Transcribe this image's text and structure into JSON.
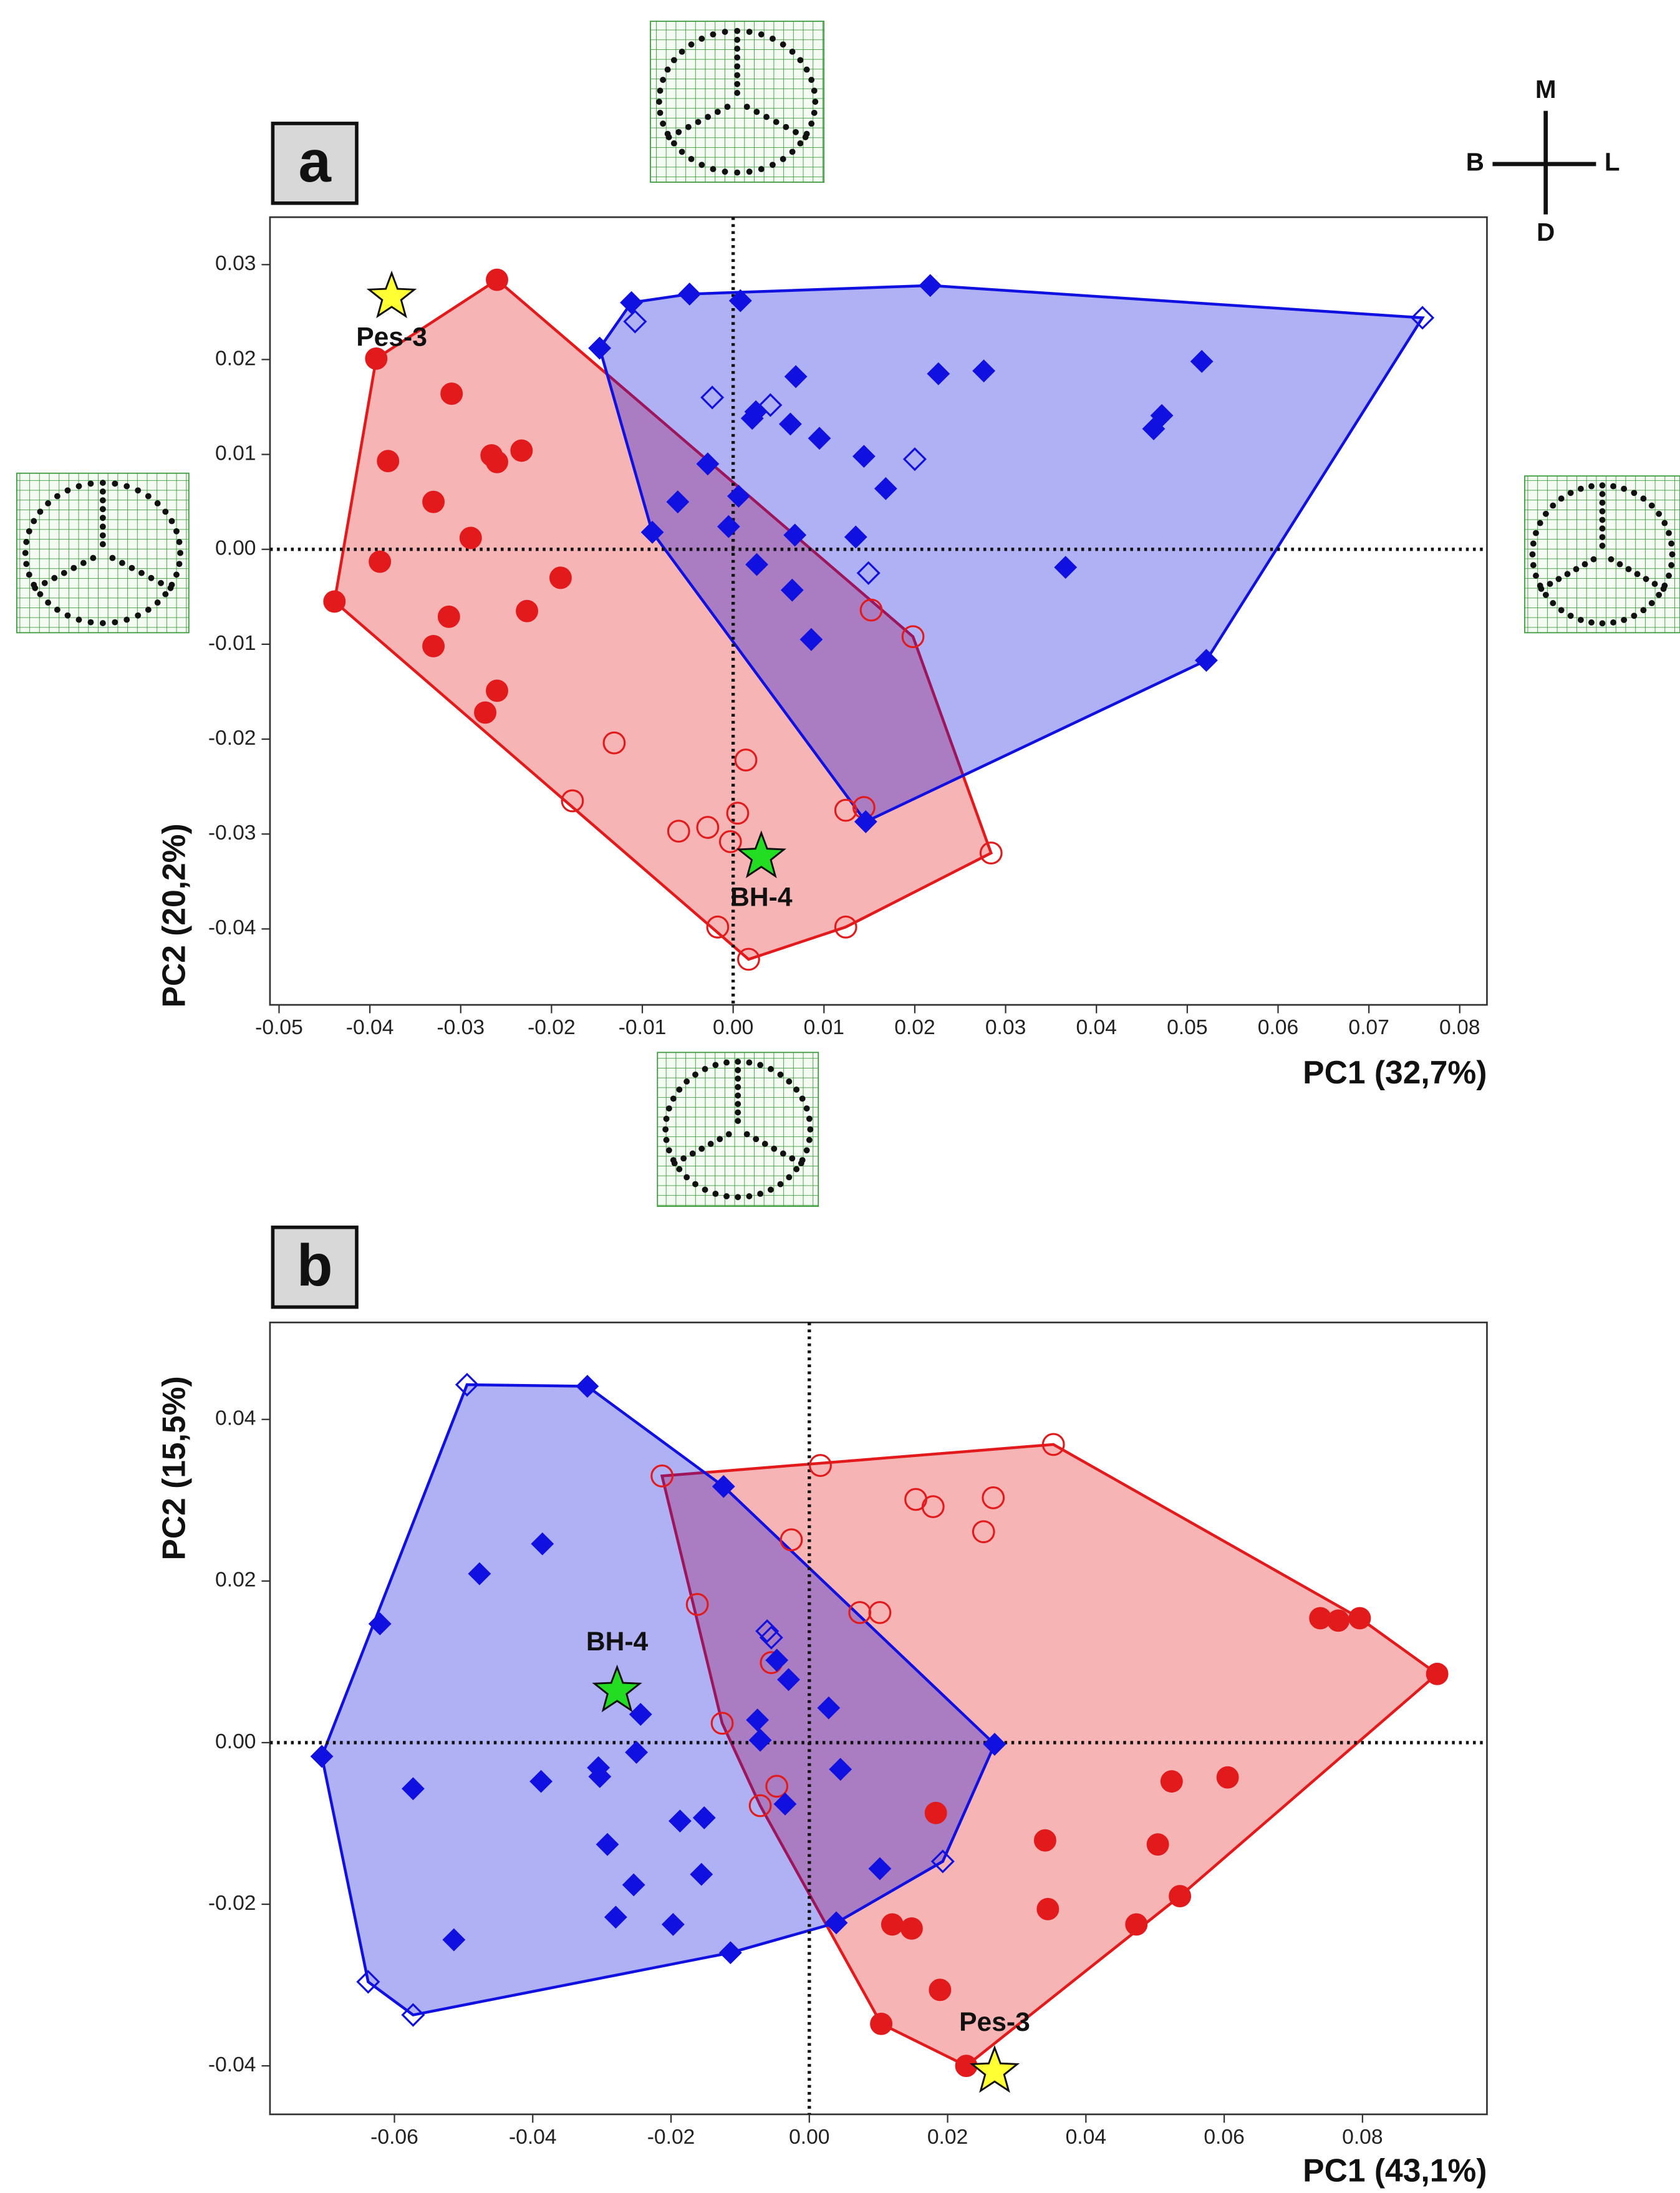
{
  "chart_data": [
    {
      "type": "scatter",
      "panel_label": "a",
      "x_label": "PC1 (32,7%)",
      "y_label": "PC2 (20,2%)",
      "xlim": [
        -0.051,
        0.083
      ],
      "ylim": [
        -0.048,
        0.035
      ],
      "xticks": [
        -0.05,
        -0.04,
        -0.03,
        -0.02,
        -0.01,
        {
          "value": 0,
          "label": "0.00"
        },
        0.01,
        0.02,
        0.03,
        0.04,
        0.05,
        0.06,
        0.07,
        0.08
      ],
      "yticks": [
        0.03,
        0.02,
        0.01,
        {
          "value": 0,
          "label": "0.00"
        },
        -0.01,
        -0.02,
        -0.03,
        -0.04
      ],
      "zero_lines": true,
      "compass": {
        "up": "M",
        "left": "B",
        "right": "L",
        "down": "D"
      },
      "groups": [
        {
          "color": "#e31a1c",
          "series": [
            {
              "marker": "circle",
              "filled": true,
              "x": [
                -0.026,
                -0.0393,
                -0.031,
                -0.038,
                -0.0266,
                -0.026,
                -0.0233,
                -0.033,
                -0.0289,
                -0.0389,
                -0.019,
                -0.0439,
                -0.0227,
                -0.0313,
                -0.033,
                -0.026,
                -0.0273
              ],
              "values": [
                0.0284,
                0.0201,
                0.0164,
                0.0093,
                0.0099,
                0.0092,
                0.0104,
                0.005,
                0.0012,
                -0.0013,
                -0.003,
                -0.0055,
                -0.0065,
                -0.0071,
                -0.0102,
                -0.0149,
                -0.0172
              ]
            },
            {
              "marker": "circle",
              "filled": false,
              "x": [
                0.0152,
                0.0198,
                -0.0131,
                0.0014,
                -0.0177,
                0.0005,
                -0.0028,
                -0.006,
                -0.0003,
                0.0124,
                0.0144,
                0.0284,
                -0.0017,
                0.0124,
                0.0017
              ],
              "values": [
                -0.0064,
                -0.0092,
                -0.0204,
                -0.0222,
                -0.0265,
                -0.0278,
                -0.0293,
                -0.0297,
                -0.0308,
                -0.0275,
                -0.0272,
                -0.032,
                -0.0398,
                -0.0398,
                -0.0432
              ]
            }
          ]
        },
        {
          "color": "#1010e0",
          "series": [
            {
              "marker": "diamond",
              "filled": true,
              "x": [
                -0.0112,
                -0.0048,
                0.0008,
                0.0217,
                -0.0147,
                0.0226,
                0.0276,
                0.0516,
                0.0069,
                0.0025,
                0.0021,
                0.0063,
                0.0095,
                0.0472,
                0.0463,
                0.0144,
                -0.0028,
                0.0168,
                0.0006,
                -0.0061,
                -0.0089,
                -0.0005,
                0.0068,
                0.0135,
                0.0366,
                0.0026,
                0.0065,
                0.0086,
                0.0521,
                0.0146
              ],
              "values": [
                0.026,
                0.0269,
                0.0262,
                0.0278,
                0.0212,
                0.0185,
                0.0188,
                0.0198,
                0.0182,
                0.0145,
                0.0138,
                0.0132,
                0.0117,
                0.0141,
                0.0127,
                0.0098,
                0.009,
                0.0064,
                0.0056,
                0.005,
                0.0018,
                0.0024,
                0.0015,
                0.0013,
                -0.0019,
                -0.0016,
                -0.0043,
                -0.0095,
                -0.0117,
                -0.0287
              ]
            },
            {
              "marker": "diamond",
              "filled": false,
              "x": [
                -0.0108,
                -0.0023,
                0.0041,
                0.02,
                0.0149,
                0.0759
              ],
              "values": [
                0.024,
                0.016,
                0.0152,
                0.0095,
                -0.0025,
                0.0244
              ]
            }
          ]
        }
      ],
      "stars": [
        {
          "text": "Pes-3",
          "x": -0.0376,
          "y": 0.0266,
          "color": "#ffff33",
          "label_position": "below"
        },
        {
          "text": "BH-4",
          "x": 0.0031,
          "y": -0.0324,
          "color": "#22dd22",
          "label_position": "below"
        }
      ]
    },
    {
      "type": "scatter",
      "panel_label": "b",
      "x_label": "PC1 (43,1%)",
      "y_label": "PC2 (15,5%)",
      "xlim": [
        -0.078,
        0.098
      ],
      "ylim": [
        -0.046,
        0.052
      ],
      "xticks": [
        -0.06,
        -0.04,
        -0.02,
        {
          "value": 0,
          "label": "0.00"
        },
        0.02,
        0.04,
        0.06,
        0.08
      ],
      "yticks": [
        0.04,
        0.02,
        {
          "value": 0,
          "label": "0.00"
        },
        -0.02,
        -0.04
      ],
      "zero_lines": true,
      "groups": [
        {
          "color": "#e31a1c",
          "series": [
            {
              "marker": "circle",
              "filled": true,
              "x": [
                0.0908,
                0.0739,
                0.0765,
                0.0796,
                0.0524,
                0.0605,
                0.0183,
                0.0341,
                0.0504,
                0.012,
                0.0148,
                0.0345,
                0.0536,
                0.0473,
                0.0189,
                0.0104,
                0.0227
              ],
              "values": [
                0.0085,
                0.0154,
                0.0151,
                0.0154,
                -0.0048,
                -0.0043,
                -0.0087,
                -0.0121,
                -0.0126,
                -0.0225,
                -0.023,
                -0.0206,
                -0.019,
                -0.0225,
                -0.0306,
                -0.0348,
                -0.04
              ]
            },
            {
              "marker": "circle",
              "filled": false,
              "x": [
                0.0353,
                0.0016,
                -0.0213,
                0.0154,
                0.0179,
                0.0266,
                0.0252,
                -0.0026,
                -0.0162,
                0.0073,
                0.0102,
                -0.0055,
                -0.0126,
                -0.0047,
                -0.0071
              ],
              "values": [
                0.0369,
                0.0343,
                0.033,
                0.0301,
                0.0292,
                0.0303,
                0.0261,
                0.0251,
                0.0171,
                0.0161,
                0.0161,
                0.0099,
                0.0024,
                -0.0054,
                -0.0078
              ]
            }
          ]
        },
        {
          "color": "#1010e0",
          "series": [
            {
              "marker": "diamond",
              "filled": true,
              "x": [
                -0.0321,
                -0.0386,
                -0.0477,
                -0.0124,
                -0.0621,
                -0.0047,
                -0.003,
                -0.0244,
                -0.0075,
                0.0028,
                -0.0071,
                -0.0705,
                -0.025,
                -0.0305,
                -0.0303,
                -0.0573,
                -0.0388,
                0.0045,
                0.0268,
                -0.0035,
                -0.0187,
                -0.0152,
                -0.0292,
                -0.0254,
                -0.0156,
                0.0102,
                -0.028,
                -0.0197,
                0.0039,
                -0.0514,
                -0.0114
              ],
              "values": [
                0.0441,
                0.0246,
                0.0209,
                0.0317,
                0.0147,
                0.0102,
                0.0078,
                0.0035,
                0.0028,
                0.0043,
                0.0003,
                -0.0017,
                -0.0012,
                -0.0031,
                -0.0042,
                -0.0057,
                -0.0048,
                -0.0033,
                -0.0002,
                -0.0076,
                -0.0097,
                -0.0093,
                -0.0126,
                -0.0176,
                -0.0163,
                -0.0156,
                -0.0216,
                -0.0225,
                -0.0223,
                -0.0244,
                -0.026
              ]
            },
            {
              "marker": "diamond",
              "filled": false,
              "x": [
                -0.0495,
                -0.0061,
                -0.0055,
                0.0193,
                -0.0638,
                -0.0573
              ],
              "values": [
                0.0443,
                0.0138,
                0.013,
                -0.0147,
                -0.0296,
                -0.0337
              ]
            }
          ]
        }
      ],
      "stars": [
        {
          "text": "BH-4",
          "x": -0.0278,
          "y": 0.0064,
          "color": "#22dd22",
          "label_position": "above"
        },
        {
          "text": "Pes-3",
          "x": 0.0268,
          "y": -0.0407,
          "color": "#ffff33",
          "label_position": "above"
        }
      ]
    }
  ]
}
